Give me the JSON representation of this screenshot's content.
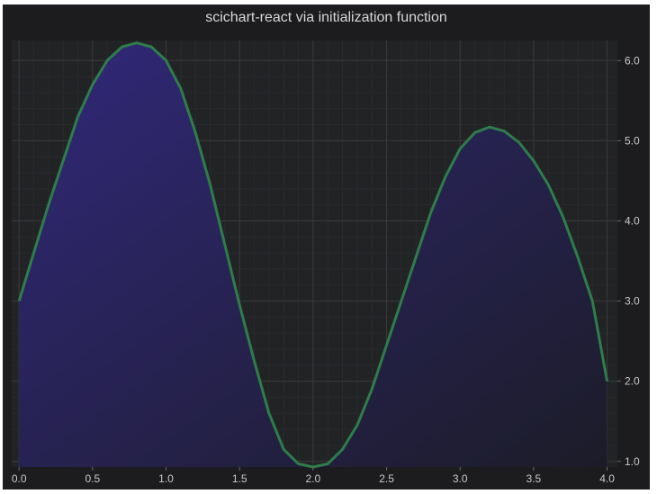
{
  "chart_data": {
    "type": "area",
    "title": "scichart-react via initialization function",
    "xlabel": "",
    "ylabel": "",
    "xlim": [
      -0.05,
      4.07
    ],
    "ylim": [
      0.93,
      6.25
    ],
    "grid": true,
    "legend": "none",
    "y_axis_position": "right",
    "x_ticks": [
      "0.0",
      "0.5",
      "1.0",
      "1.5",
      "2.0",
      "2.5",
      "3.0",
      "3.5",
      "4.0"
    ],
    "y_ticks": [
      "1.0",
      "2.0",
      "3.0",
      "4.0",
      "5.0",
      "6.0"
    ],
    "colors": {
      "background": "#1c1c1f",
      "stroke": "#2e7d4a",
      "fill_top": "#31287a",
      "fill_bottom": "#1c1c28",
      "grid_major": "#3a3a3d",
      "grid_minor": "#2a2a2d"
    },
    "series": [
      {
        "x": [
          0.0,
          0.1,
          0.2,
          0.3,
          0.4,
          0.5,
          0.6,
          0.7,
          0.8,
          0.9,
          1.0,
          1.1,
          1.2,
          1.3,
          1.4,
          1.5,
          1.6,
          1.7,
          1.8,
          1.9,
          2.0,
          2.1,
          2.2,
          2.3,
          2.4,
          2.5,
          2.6,
          2.7,
          2.8,
          2.9,
          3.0,
          3.1,
          3.2,
          3.3,
          3.4,
          3.5,
          3.6,
          3.7,
          3.8,
          3.9,
          4.0
        ],
        "y": [
          3.0,
          3.6,
          4.2,
          4.75,
          5.3,
          5.7,
          6.0,
          6.17,
          6.22,
          6.17,
          6.0,
          5.65,
          5.1,
          4.45,
          3.7,
          2.95,
          2.25,
          1.6,
          1.15,
          0.97,
          0.93,
          0.97,
          1.15,
          1.45,
          1.9,
          2.45,
          3.0,
          3.55,
          4.1,
          4.55,
          4.9,
          5.1,
          5.17,
          5.12,
          4.98,
          4.75,
          4.45,
          4.05,
          3.55,
          3.0,
          2.0
        ]
      }
    ]
  }
}
